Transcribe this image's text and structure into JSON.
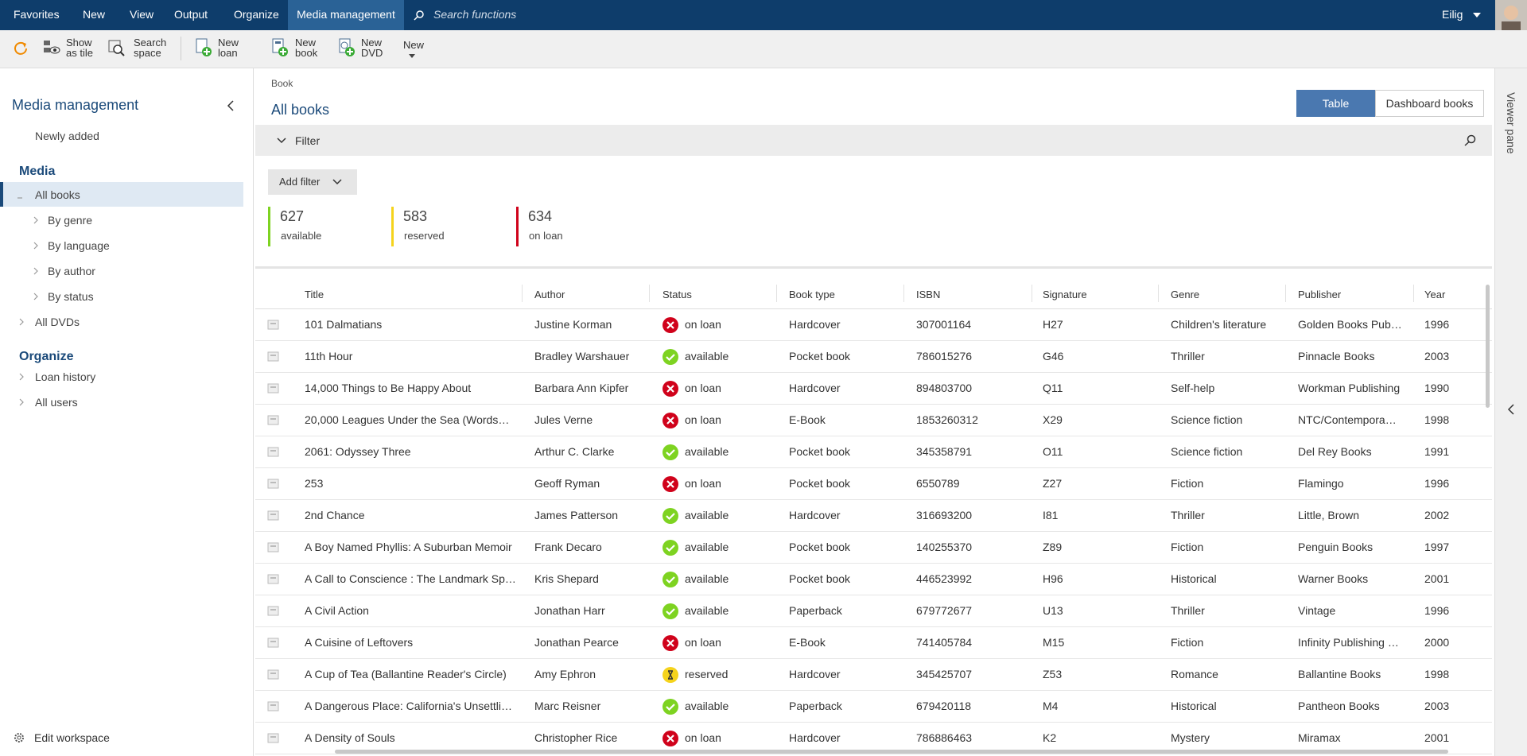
{
  "menu": [
    "Favorites",
    "New",
    "View",
    "Output",
    "Organize",
    "Media management"
  ],
  "search_placeholder": "Search functions",
  "user": "Eilig",
  "toolbar": [
    [
      "Show",
      "as tile"
    ],
    [
      "Search",
      "space"
    ],
    [
      "New",
      "loan"
    ],
    [
      "New",
      "book"
    ],
    [
      "New",
      "DVD"
    ],
    [
      "New"
    ]
  ],
  "sidebar": {
    "title": "Media management",
    "newly_added": "Newly added",
    "sections": [
      {
        "heading": "Media",
        "items": [
          "All books",
          "By genre",
          "By language",
          "By author",
          "By status",
          "All DVDs"
        ]
      },
      {
        "heading": "Organize",
        "items": [
          "Loan history",
          "All users"
        ]
      }
    ],
    "footer": "Edit workspace"
  },
  "breadcrumb": "Book",
  "page_title": "All books",
  "view_buttons": [
    "Table",
    "Dashboard books"
  ],
  "filter": "Filter",
  "add_filter": "Add filter",
  "counters": [
    {
      "value": 627,
      "label": "available",
      "color": "#7ed321"
    },
    {
      "value": 583,
      "label": "reserved",
      "color": "#f5d31c"
    },
    {
      "value": 634,
      "label": "on loan",
      "color": "#d0021b"
    }
  ],
  "viewer_pane": "Viewer pane",
  "table": {
    "columns": [
      "Title",
      "Author",
      "Status",
      "Book type",
      "ISBN",
      "Signature",
      "Genre",
      "Publisher",
      "Year"
    ],
    "rows": [
      [
        "101 Dalmatians",
        "Justine Korman",
        "on loan",
        "Hardcover",
        "307001164",
        "H27",
        "Children's literature",
        "Golden Books Pub…",
        "1996"
      ],
      [
        "11th Hour",
        "Bradley Warshauer",
        "available",
        "Pocket book",
        "786015276",
        "G46",
        "Thriller",
        "Pinnacle Books",
        "2003"
      ],
      [
        "14,000 Things to Be Happy About",
        "Barbara Ann Kipfer",
        "on loan",
        "Hardcover",
        "894803700",
        "Q11",
        "Self-help",
        "Workman Publishing",
        "1990"
      ],
      [
        "20,000 Leagues Under the Sea (Words…",
        "Jules Verne",
        "on loan",
        "E-Book",
        "1853260312",
        "X29",
        "Science fiction",
        "NTC/Contempora…",
        "1998"
      ],
      [
        "2061: Odyssey Three",
        "Arthur C. Clarke",
        "available",
        "Pocket book",
        "345358791",
        "O11",
        "Science fiction",
        "Del Rey Books",
        "1991"
      ],
      [
        "253",
        "Geoff Ryman",
        "on loan",
        "Pocket book",
        "6550789",
        "Z27",
        "Fiction",
        "Flamingo",
        "1996"
      ],
      [
        "2nd Chance",
        "James Patterson",
        "available",
        "Hardcover",
        "316693200",
        "I81",
        "Thriller",
        "Little, Brown",
        "2002"
      ],
      [
        "A Boy Named Phyllis: A Suburban Memoir",
        "Frank Decaro",
        "available",
        "Pocket book",
        "140255370",
        "Z89",
        "Fiction",
        "Penguin Books",
        "1997"
      ],
      [
        "A Call to Conscience : The Landmark Sp…",
        "Kris Shepard",
        "available",
        "Pocket book",
        "446523992",
        "H96",
        "Historical",
        "Warner Books",
        "2001"
      ],
      [
        "A Civil Action",
        "Jonathan Harr",
        "available",
        "Paperback",
        "679772677",
        "U13",
        "Thriller",
        "Vintage",
        "1996"
      ],
      [
        "A Cuisine of Leftovers",
        "Jonathan Pearce",
        "on loan",
        "E-Book",
        "741405784",
        "M15",
        "Fiction",
        "Infinity Publishing …",
        "2000"
      ],
      [
        "A Cup of Tea (Ballantine Reader's Circle)",
        "Amy Ephron",
        "reserved",
        "Hardcover",
        "345425707",
        "Z53",
        "Romance",
        "Ballantine Books",
        "1998"
      ],
      [
        "A Dangerous Place: California's Unsettli…",
        "Marc Reisner",
        "available",
        "Paperback",
        "679420118",
        "M4",
        "Historical",
        "Pantheon Books",
        "2003"
      ],
      [
        "A Density of Souls",
        "Christopher Rice",
        "on loan",
        "Hardcover",
        "786886463",
        "K2",
        "Mystery",
        "Miramax",
        "2001"
      ]
    ]
  }
}
